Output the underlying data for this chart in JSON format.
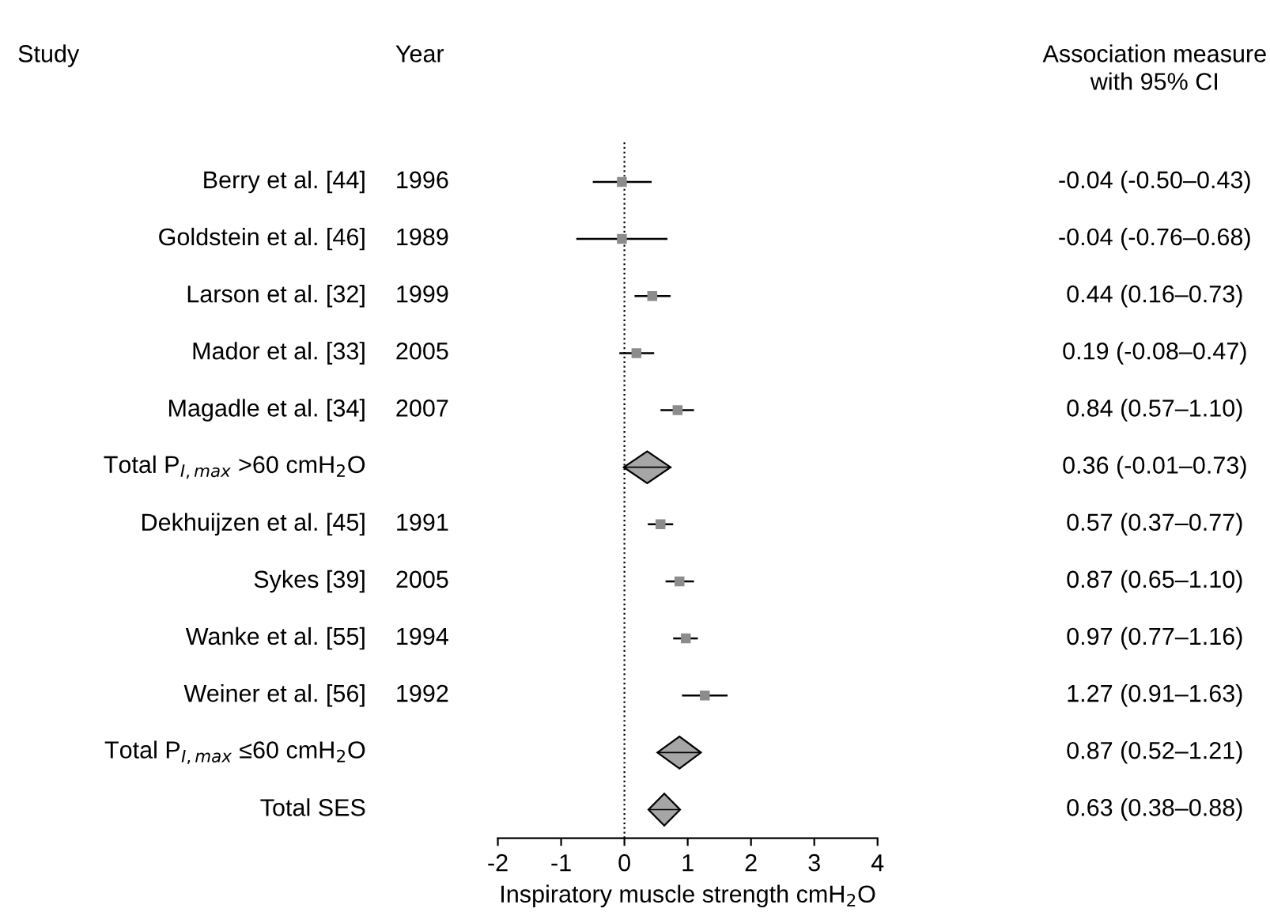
{
  "chart_data": {
    "type": "scatter",
    "orientation": "horizontal",
    "xlabel": "Inspiratory muscle strength cmH$_{2}$O",
    "categories": [
      "Berry et al. [44]",
      "Goldstein et al. [46]",
      "Larson et al. [32]",
      "Mador et al. [33]",
      "Magadle et al. [34]",
      "Total P$_{I,max}$ >60 cmH$_{2}$O",
      "Dekhuijzen et al. [45]",
      "Sykes [39]",
      "Wanke et al. [55]",
      "Weiner et al. [56]",
      "Total P$_{I,max}$ ≤60 cmH$_{2}$O",
      "Total SES"
    ],
    "series": [
      {
        "marker": "square",
        "color": "#8c8c8c",
        "values": [
          -0.04,
          -0.04,
          0.44,
          0.19,
          0.84,
          null,
          0.57,
          0.87,
          0.97,
          1.27,
          null,
          null
        ],
        "errors": [
          [
            -0.5,
            0.43
          ],
          [
            -0.76,
            0.68
          ],
          [
            0.16,
            0.73
          ],
          [
            -0.08,
            0.47
          ],
          [
            0.57,
            1.1
          ],
          null,
          [
            0.37,
            0.77
          ],
          [
            0.65,
            1.1
          ],
          [
            0.77,
            1.16
          ],
          [
            0.91,
            1.63
          ],
          null,
          null
        ]
      },
      {
        "marker": "diamond",
        "color": "#a6a6a6",
        "values": [
          null,
          null,
          null,
          null,
          null,
          0.36,
          null,
          null,
          null,
          null,
          0.87,
          0.63
        ],
        "errors": [
          null,
          null,
          null,
          null,
          null,
          [
            -0.01,
            0.73
          ],
          null,
          null,
          null,
          null,
          [
            0.52,
            1.21
          ],
          [
            0.38,
            0.88
          ]
        ]
      }
    ],
    "value_labels": [
      "-0.04 (-0.50–0.43)",
      "-0.04 (-0.76–0.68)",
      "0.44 (0.16–0.73)",
      "0.19 (-0.08–0.47)",
      "0.84 (0.57–1.10)",
      "0.36 (-0.01–0.73)",
      "0.57 (0.37–0.77)",
      "0.87 (0.65–1.10)",
      "0.97 (0.77–1.16)",
      "1.27 (0.91–1.63)",
      "0.87 (0.52–1.21)",
      "0.63 (0.38–0.88)"
    ],
    "annotations": [
      "Study",
      "Year",
      "Association measure\nwith 95% CI",
      "1996",
      "1989",
      "1999",
      "2005",
      "2007",
      "1991",
      "2005",
      "1994",
      "1992"
    ],
    "xlim": [
      -2,
      4
    ],
    "xticks": [
      -2,
      -1,
      0,
      1,
      2,
      3,
      4
    ],
    "ref_lines": [
      {
        "axis": "x",
        "value": 0,
        "line_style": "dotted",
        "color": "#000000"
      }
    ],
    "grid": false,
    "legend": false
  }
}
